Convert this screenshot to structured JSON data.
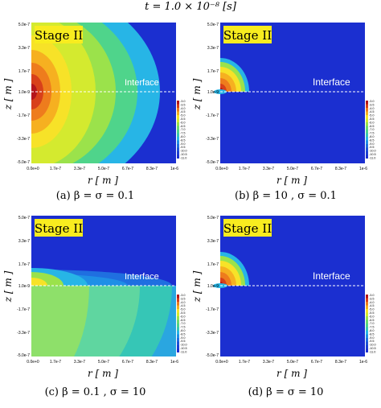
{
  "title": "t = 1.0 × 10⁻⁸ [s]",
  "common": {
    "stage_label": "Stage II",
    "interface_label": "Interface",
    "xlabel": "r [ m ]",
    "ylabel": "z [ m ]",
    "xticks": [
      "0.0e+0",
      "1.7e-7",
      "3.3e-7",
      "5.0e-7",
      "6.7e-7",
      "8.3e-7",
      "1e-6"
    ],
    "yticks": [
      "5.0e-7",
      "3.3e-7",
      "1.7e-7",
      "1.0e-9",
      "-1.7e-7",
      "-3.3e-7",
      "-5.0e-7"
    ],
    "colorbar_ticks": [
      "-3.0",
      "-3.5",
      "-4.0",
      "-4.5",
      "-5.0",
      "-5.5",
      "-6.0",
      "-6.5",
      "-7.0",
      "-7.5",
      "-8.0",
      "-8.5",
      "-9.0",
      "-9.5",
      "-10.0",
      "-10.5",
      "-11.0"
    ],
    "colors": {
      "background": "#1b2fd0",
      "interface_line": "#ffffff",
      "stage_box_fill": "#f8ec1f",
      "stage_box_text": "#000000"
    }
  },
  "panels": [
    {
      "caption": "(a) β = σ = 0.1"
    },
    {
      "caption": "(b) β = 10 , σ = 0.1"
    },
    {
      "caption": "(c) β = 0.1 , σ = 10"
    },
    {
      "caption": "(d) β = σ = 10"
    }
  ]
}
